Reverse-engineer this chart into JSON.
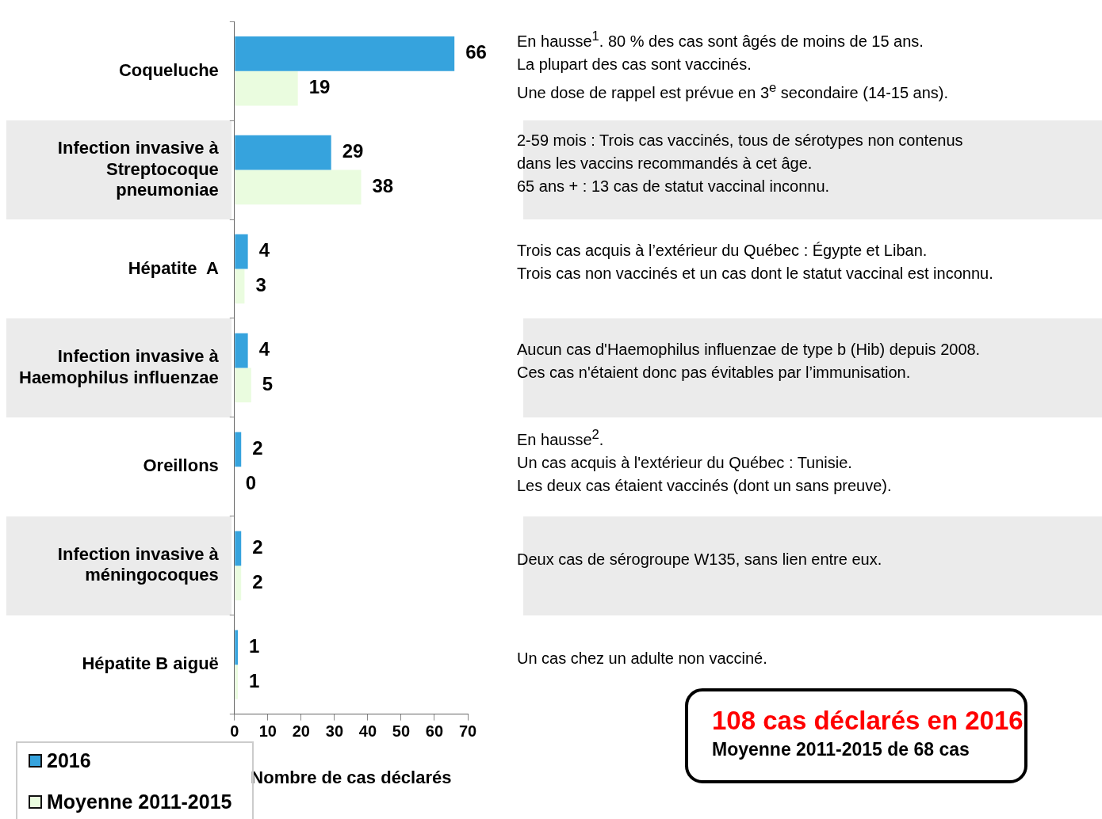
{
  "chart_data": {
    "type": "bar",
    "orientation": "horizontal",
    "categories": [
      "Coqueluche",
      "Infection invasive à Streptocoque pneumoniae",
      "Hépatite  A",
      "Infection invasive à Haemophilus influenzae",
      "Oreillons",
      "Infection invasive à méningocoques",
      "Hépatite B aiguë"
    ],
    "series": [
      {
        "name": "2016",
        "color": "#36a3dd",
        "values": [
          66,
          29,
          4,
          4,
          2,
          2,
          1
        ]
      },
      {
        "name": "Moyenne 2011-2015",
        "color": "#eafcdf",
        "values": [
          19,
          38,
          3,
          5,
          0,
          2,
          1
        ]
      }
    ],
    "xlim": [
      0,
      70
    ],
    "xticks": [
      0,
      10,
      20,
      30,
      40,
      50,
      60,
      70
    ],
    "xlabel": "Nombre de cas déclarés",
    "grid": false,
    "legend": "bottom left",
    "data_labels": true,
    "annotations": [
      "En hausse$^{1}$. 80 % des cas sont âgés de moins de 15 ans.\nLa plupart des cas sont vaccinés.\nUne dose de rappel est prévue en 3$^{e}$ secondaire (14-15 ans).",
      "2-59 mois : Trois cas vaccinés, tous de sérotypes non contenus\ndans les vaccins recommandés à cet âge.\n65 ans + : 13 cas de statut vaccinal inconnu.",
      "Trois cas acquis à l’extérieur du Québec : Égypte et Liban.\nTrois cas non vaccinés et un cas dont le statut vaccinal est inconnu.",
      "Aucun cas d'Haemophilus influenzae de type b (Hib) depuis 2008.\nCes cas n'étaient donc pas évitables par l’immunisation.",
      "En hausse$^{2}$.\nUn cas acquis à l'extérieur du Québec : Tunisie.\nLes deux cas étaient vaccinés (dont un sans preuve).",
      "Deux cas de sérogroupe W135, sans lien entre eux.",
      "Un cas chez un adulte non vacciné.",
      "108 cas déclarés en 2016",
      "Moyenne 2011-2015 de 68 cas"
    ]
  }
}
